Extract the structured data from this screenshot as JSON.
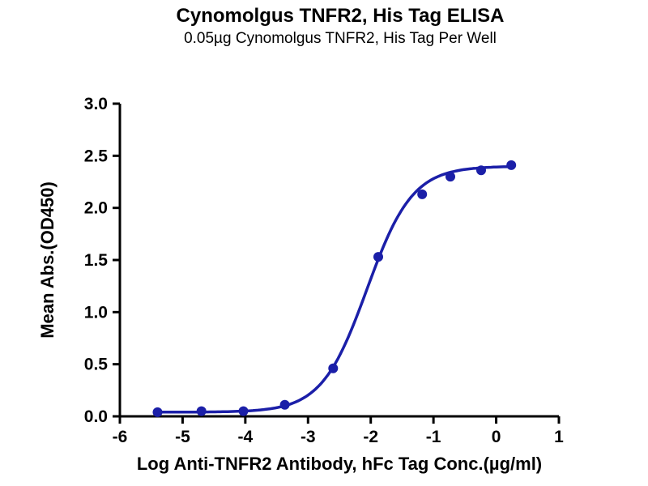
{
  "chart_data": {
    "type": "scatter",
    "title": "Cynomolgus TNFR2, His Tag ELISA",
    "subtitle": "0.05µg Cynomolgus TNFR2, His Tag Per Well",
    "xlabel": "Log Anti-TNFR2 Antibody, hFc Tag Conc.(µg/ml)",
    "ylabel": "Mean Abs.(OD450)",
    "xlim": [
      -6,
      1
    ],
    "ylim": [
      0,
      3
    ],
    "xticks": [
      -6,
      -5,
      -4,
      -3,
      -2,
      -1,
      0,
      1
    ],
    "yticks": [
      0,
      0.5,
      1,
      1.5,
      2,
      2.5,
      3
    ],
    "x": [
      -5.4,
      -4.7,
      -4.03,
      -3.37,
      -2.6,
      -1.88,
      -1.18,
      -0.73,
      -0.24,
      0.24
    ],
    "y": [
      0.04,
      0.05,
      0.05,
      0.11,
      0.46,
      1.53,
      2.13,
      2.3,
      2.36,
      2.41
    ],
    "fit": {
      "model": "4PL",
      "bottom": 0.04,
      "top": 2.4,
      "log_ec50": -2.06,
      "hill": 1.2,
      "x_range": [
        -5.4,
        0.25
      ]
    },
    "grid": false,
    "legend": "none",
    "color": "#1b1fa8",
    "axis_color": "#000000"
  }
}
